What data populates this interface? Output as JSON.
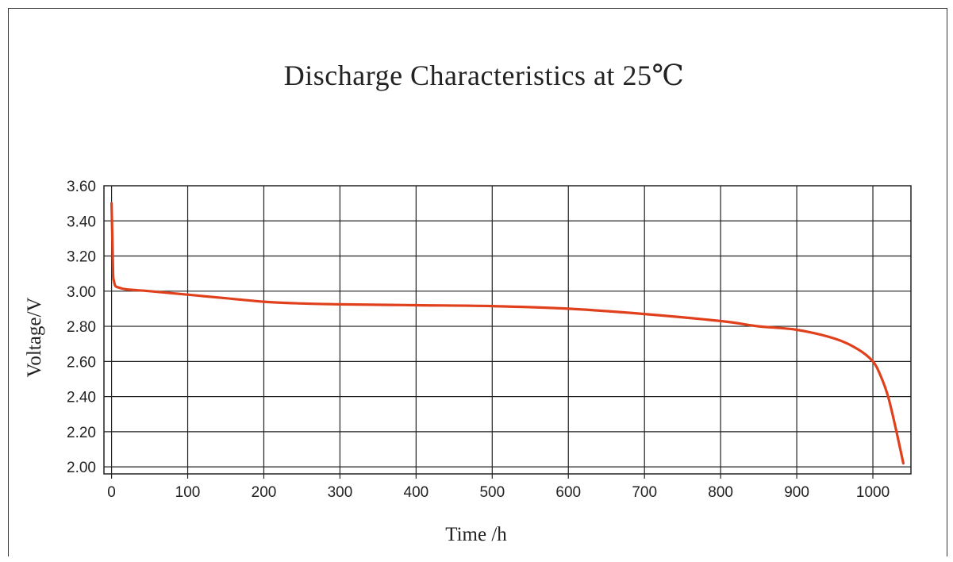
{
  "chart_data": {
    "type": "line",
    "title": "Discharge Characteristics at 25℃",
    "xlabel": "Time /h",
    "ylabel": "Voltage/V",
    "xlim": [
      -10,
      1050
    ],
    "ylim": [
      1.96,
      3.6
    ],
    "xticks": [
      "0",
      "100",
      "200",
      "300",
      "400",
      "500",
      "600",
      "700",
      "800",
      "900",
      "1000"
    ],
    "yticks": [
      "2.00",
      "2.20",
      "2.40",
      "2.60",
      "2.80",
      "3.00",
      "3.20",
      "3.40",
      "3.60"
    ],
    "grid": true,
    "line_color": "#e0401c",
    "series": [
      {
        "x": [
          0,
          1,
          2,
          3,
          5,
          10,
          20,
          50,
          100,
          150,
          200,
          250,
          300,
          400,
          500,
          600,
          700,
          800,
          850,
          900,
          950,
          980,
          1000,
          1010,
          1020,
          1030,
          1040
        ],
        "y": [
          3.5,
          3.3,
          3.1,
          3.06,
          3.03,
          3.02,
          3.01,
          3.0,
          2.98,
          2.96,
          2.94,
          2.93,
          2.925,
          2.92,
          2.915,
          2.9,
          2.87,
          2.83,
          2.8,
          2.78,
          2.73,
          2.67,
          2.6,
          2.52,
          2.4,
          2.22,
          2.02
        ]
      }
    ]
  }
}
